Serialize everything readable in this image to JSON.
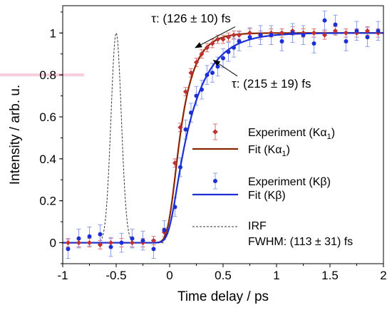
{
  "chart_data": {
    "type": "scatter",
    "title": "",
    "xlabel": "Time delay / ps",
    "ylabel": "Intensity / arb. u.",
    "xlim": [
      -1,
      2
    ],
    "ylim": [
      -0.1,
      1.13
    ],
    "xticks": [
      -1,
      -0.5,
      0,
      0.5,
      1,
      1.5,
      2
    ],
    "xtick_labels": [
      "-1",
      "-0.5",
      "0",
      "0.5",
      "1",
      "1.5",
      "2"
    ],
    "yticks": [
      0,
      0.2,
      0.4,
      0.6,
      0.8,
      1
    ],
    "ytick_labels": [
      "0",
      "0.2",
      "0.4",
      "0.6",
      "0.8",
      "1"
    ],
    "grid": false,
    "legend_position": "right",
    "colors": {
      "ka_points": "#c03030",
      "ka_fit": "#8b2500",
      "kb_points": "#1a2fd6",
      "kb_fit": "#1a2fd6",
      "kb_error": "#8da0ee",
      "ka_error": "#e07070",
      "irf": "#333333",
      "highlight_band": "#f4a3c2"
    },
    "series": [
      {
        "name": "Experiment (Kα1)",
        "legend_label": "Experiment (Kα",
        "legend_sub": "1",
        "legend_close": ")",
        "kind": "points",
        "marker": "diamond",
        "x": [
          -0.95,
          -0.85,
          -0.75,
          -0.65,
          -0.55,
          -0.45,
          -0.35,
          -0.25,
          -0.15,
          -0.05,
          0.05,
          0.1,
          0.15,
          0.2,
          0.25,
          0.3,
          0.35,
          0.4,
          0.45,
          0.5,
          0.55,
          0.6,
          0.65,
          0.75,
          0.85,
          0.95,
          1.05,
          1.15,
          1.25,
          1.35,
          1.45,
          1.55,
          1.65,
          1.75,
          1.85,
          1.95
        ],
        "y": [
          0.0,
          0.0,
          0.0,
          -0.01,
          0.0,
          0.0,
          0.0,
          0.0,
          0.01,
          0.05,
          0.38,
          0.55,
          0.72,
          0.81,
          0.86,
          0.9,
          0.93,
          0.95,
          0.97,
          0.97,
          0.98,
          0.99,
          0.99,
          1.0,
          0.99,
          1.0,
          1.0,
          1.01,
          1.0,
          1.0,
          0.99,
          1.01,
          1.0,
          1.0,
          1.01,
          1.0
        ],
        "error": 0.02
      },
      {
        "name": "Fit (Kα1)",
        "legend_label": "Fit  (Kα",
        "legend_sub": "1",
        "legend_close": ")",
        "kind": "line",
        "model": "exponential_rise",
        "onset": 0.0,
        "tau_fs": 126,
        "irf_fwhm_fs": 113
      },
      {
        "name": "Experiment (Kβ)",
        "legend_label": "Experiment (Kβ)",
        "kind": "points",
        "marker": "circle",
        "x": [
          -0.95,
          -0.85,
          -0.75,
          -0.65,
          -0.55,
          -0.45,
          -0.35,
          -0.25,
          -0.15,
          -0.05,
          0.05,
          0.1,
          0.15,
          0.2,
          0.25,
          0.3,
          0.35,
          0.4,
          0.45,
          0.5,
          0.55,
          0.6,
          0.65,
          0.75,
          0.85,
          0.95,
          1.05,
          1.15,
          1.25,
          1.35,
          1.45,
          1.55,
          1.65,
          1.75,
          1.85,
          1.95
        ],
        "y": [
          -0.03,
          0.02,
          0.03,
          0.04,
          -0.02,
          0.0,
          0.02,
          0.01,
          -0.03,
          0.06,
          0.17,
          0.36,
          0.54,
          0.62,
          0.7,
          0.73,
          0.8,
          0.81,
          0.84,
          0.88,
          0.91,
          0.93,
          0.96,
          0.98,
          0.99,
          0.99,
          0.96,
          1.0,
          0.99,
          0.95,
          1.06,
          1.04,
          0.96,
          1.01,
          0.98,
          1.01
        ],
        "error": 0.045
      },
      {
        "name": "Fit (Kβ)",
        "legend_label": "Fit (Kβ)",
        "kind": "line",
        "model": "exponential_rise",
        "onset": 0.0,
        "tau_fs": 215,
        "irf_fwhm_fs": 113
      },
      {
        "name": "IRF",
        "legend_label": "IRF",
        "legend_line2": "FWHM: (113 ± 31) fs",
        "kind": "dashed_line",
        "model": "gaussian",
        "center": -0.5,
        "fwhm_fs": 113,
        "amplitude": 1.0
      }
    ],
    "annotations": [
      {
        "text": "τ: (126 ± 10) fs",
        "x": 0.2,
        "y": 1.05,
        "arrow_to_x": 0.24,
        "arrow_to_y": 0.93
      },
      {
        "text": "τ: (215 ± 19) fs",
        "x": 0.58,
        "y": 0.74,
        "arrow_to_x": 0.41,
        "arrow_to_y": 0.87
      }
    ],
    "highlight_band": {
      "y": 0.8,
      "x_from": -1,
      "x_to": -0.8
    }
  }
}
